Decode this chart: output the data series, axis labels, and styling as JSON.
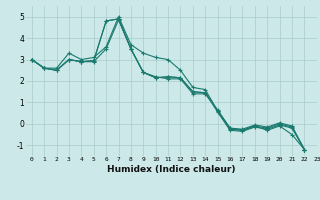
{
  "title": "",
  "xlabel": "Humidex (Indice chaleur)",
  "xlim": [
    -0.5,
    23
  ],
  "ylim": [
    -1.5,
    5.5
  ],
  "yticks": [
    -1,
    0,
    1,
    2,
    3,
    4,
    5
  ],
  "xticks": [
    0,
    1,
    2,
    3,
    4,
    5,
    6,
    7,
    8,
    9,
    10,
    11,
    12,
    13,
    14,
    15,
    16,
    17,
    18,
    19,
    20,
    21,
    22,
    23
  ],
  "xtick_labels": [
    "0",
    "1",
    "2",
    "3",
    "4",
    "5",
    "6",
    "7",
    "8",
    "9",
    "10",
    "11",
    "12",
    "13",
    "14",
    "15",
    "16",
    "17",
    "18",
    "19",
    "20",
    "21",
    "22",
    "23"
  ],
  "bg_color": "#cce8e8",
  "line_color": "#1a7a6e",
  "grid_color": "#aacccc",
  "lines": [
    [
      3.0,
      2.6,
      2.6,
      3.3,
      3.0,
      3.1,
      3.6,
      5.0,
      3.7,
      3.3,
      3.1,
      3.0,
      2.5,
      1.7,
      1.6,
      0.6,
      -0.2,
      -0.3,
      -0.1,
      -0.3,
      -0.1,
      -0.5,
      -1.2
    ],
    [
      3.0,
      2.6,
      2.5,
      3.0,
      2.9,
      2.95,
      4.8,
      4.9,
      3.5,
      2.4,
      2.15,
      2.2,
      2.15,
      1.5,
      1.45,
      0.55,
      -0.3,
      -0.35,
      -0.15,
      -0.25,
      -0.05,
      -0.2,
      -1.2
    ],
    [
      3.0,
      2.6,
      2.5,
      3.0,
      2.9,
      2.95,
      4.8,
      4.9,
      3.5,
      2.4,
      2.15,
      2.2,
      2.15,
      1.5,
      1.45,
      0.6,
      -0.25,
      -0.3,
      -0.1,
      -0.2,
      0.0,
      -0.15,
      -1.2
    ],
    [
      3.0,
      2.6,
      2.5,
      3.0,
      2.9,
      2.9,
      3.5,
      4.85,
      3.5,
      2.4,
      2.2,
      2.1,
      2.1,
      1.4,
      1.4,
      0.65,
      -0.2,
      -0.25,
      -0.05,
      -0.15,
      0.05,
      -0.1,
      -1.2
    ]
  ]
}
